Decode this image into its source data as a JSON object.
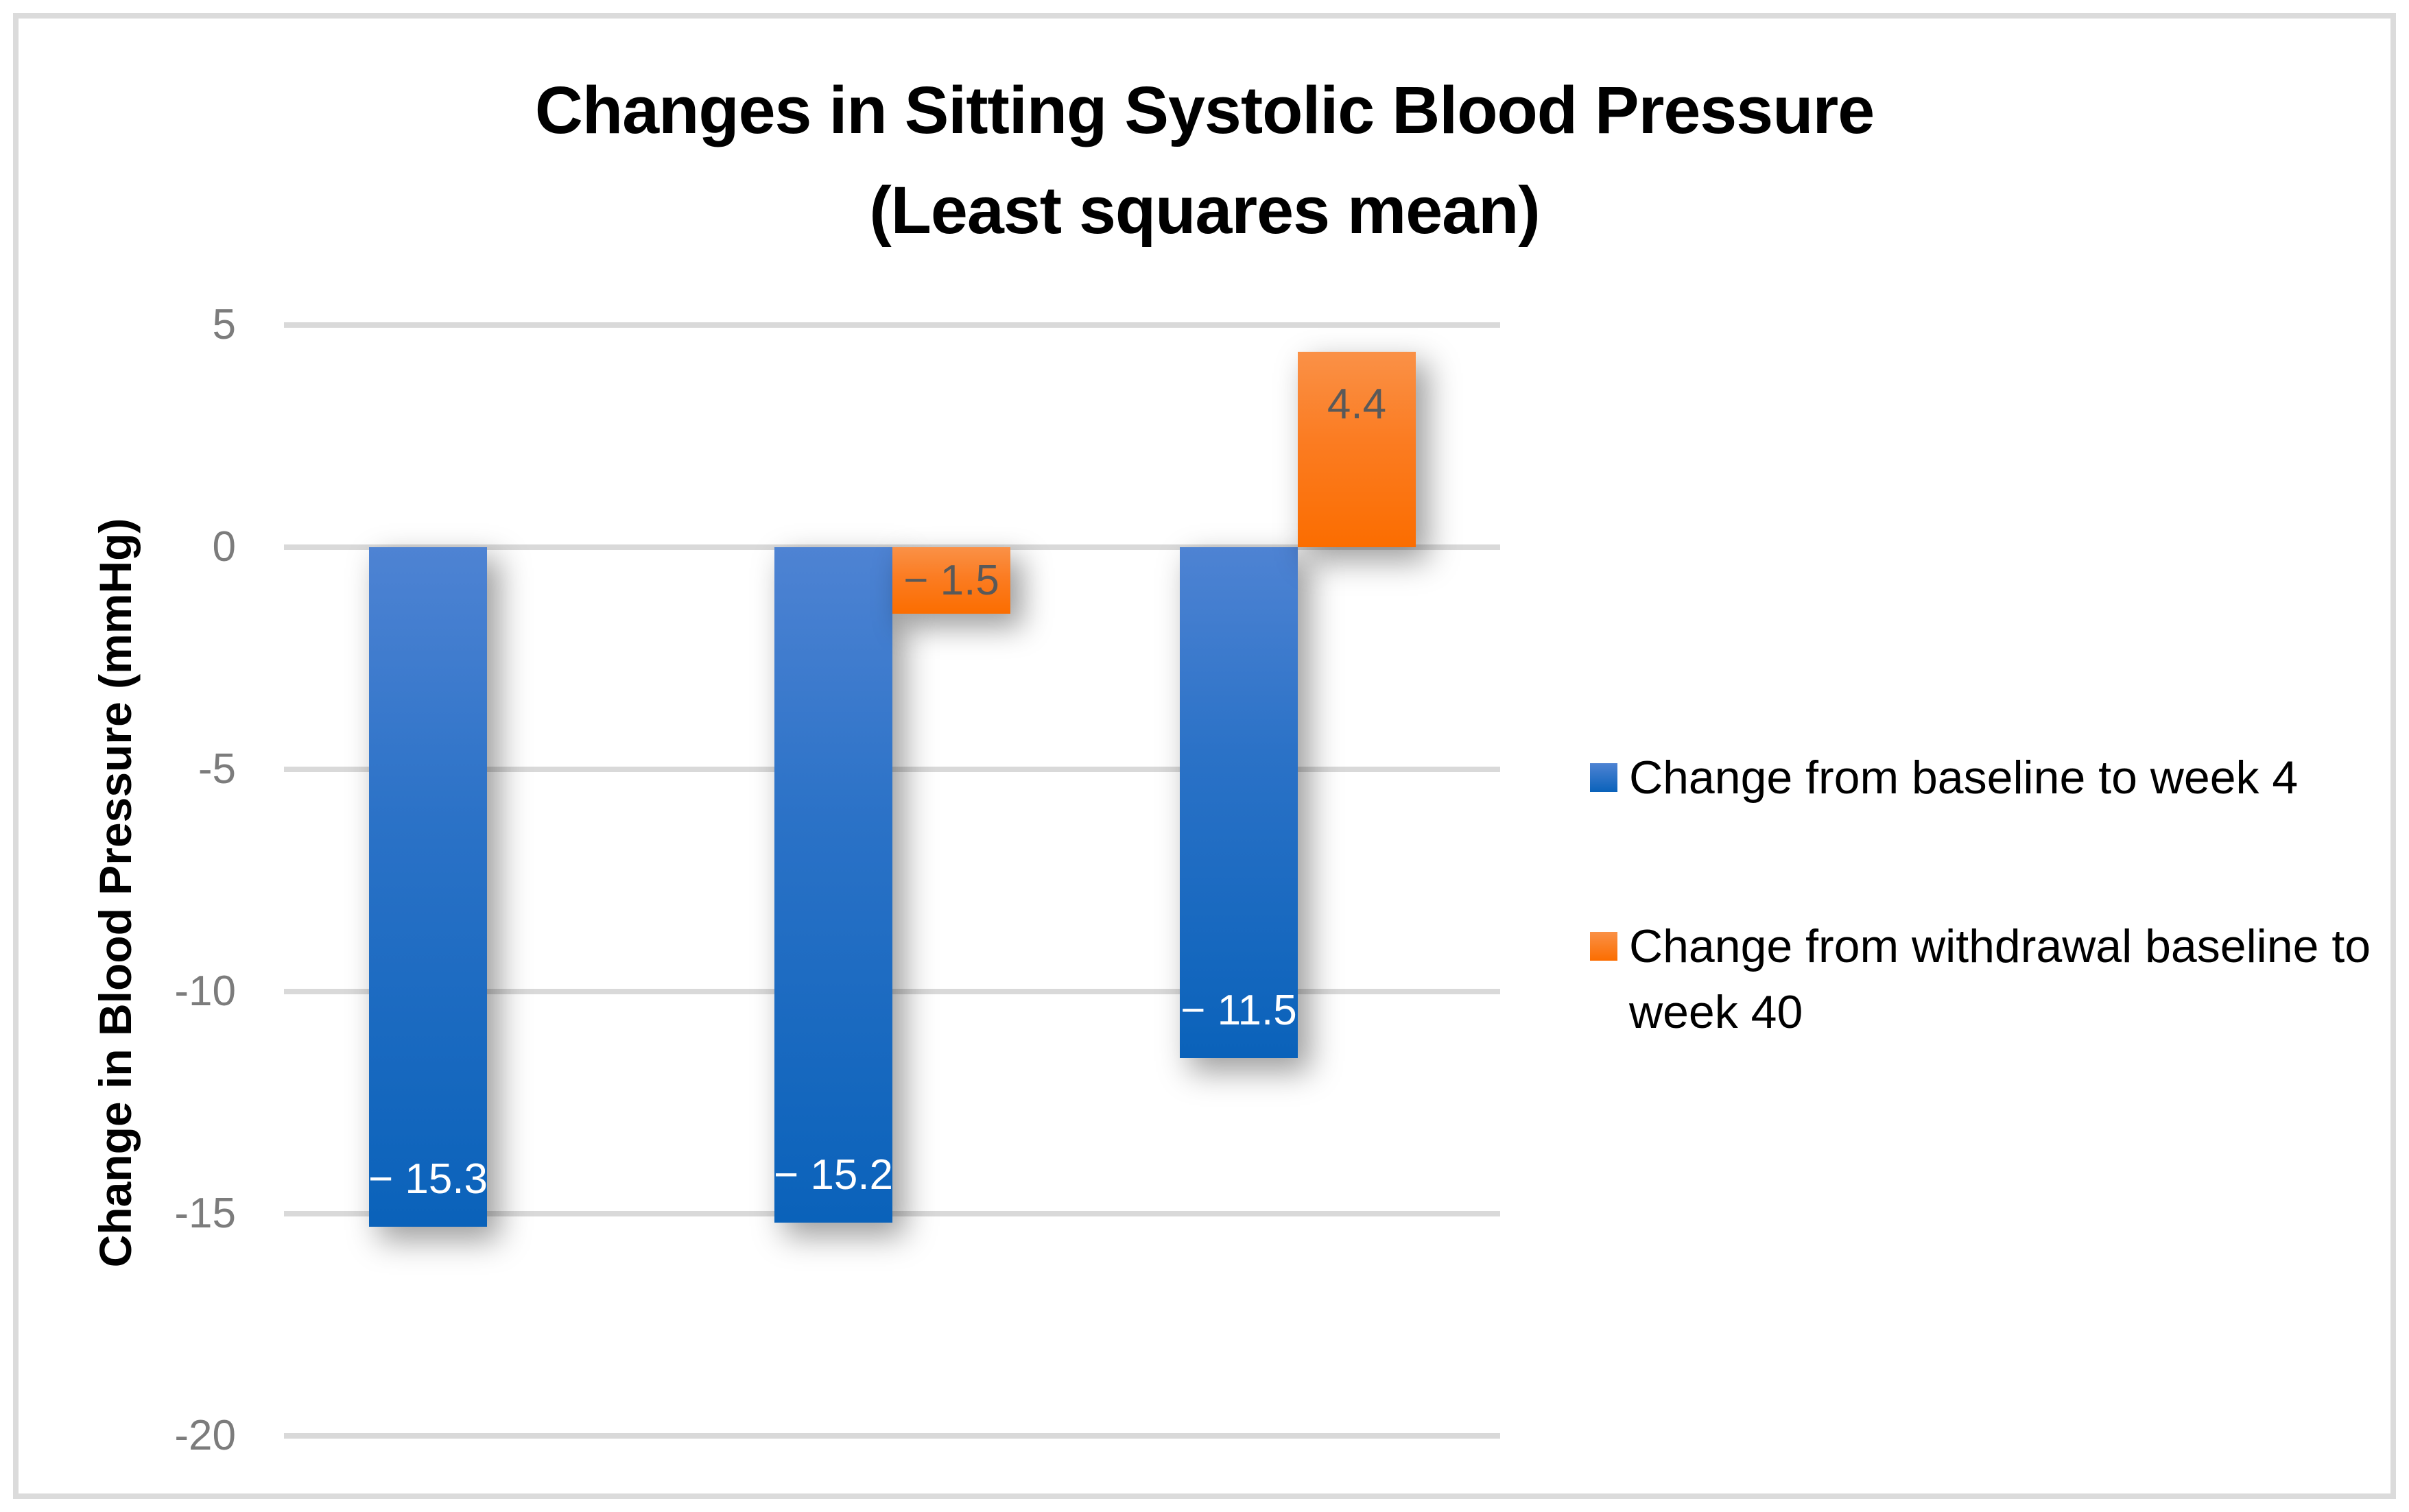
{
  "title": {
    "line1": "Changes in Sitting Systolic Blood Pressure",
    "line2": "(Least squares mean)"
  },
  "y_axis_title": "Change in Blood Pressure (mmHg)",
  "legend": {
    "items": [
      {
        "label": "Change from baseline to week 4",
        "swatch": "blue"
      },
      {
        "label": "Change from withdrawal baseline to week 40",
        "swatch": "orange"
      }
    ]
  },
  "colors": {
    "blue_bar_top": "#4E83D3",
    "blue_bar_bottom": "#0A62BA",
    "orange_bar_top": "#FA9147",
    "orange_bar_bottom": "#FB6D00",
    "gridline": "#D9D9D9",
    "tick_text": "#7C7C7C",
    "bar_label_on_blue": "#FFFFFF",
    "bar_label_on_orange": "#595959",
    "frame_border": "#DBDBDB",
    "title_text": "#000000"
  },
  "chart_data": {
    "type": "bar",
    "title": "Changes in Sitting Systolic Blood Pressure (Least squares mean)",
    "categories": [
      "",
      "",
      ""
    ],
    "series": [
      {
        "name": "Change from baseline to week 4",
        "color": "#1B67C0",
        "values": [
          -15.3,
          -15.2,
          -11.5
        ],
        "data_labels": [
          "− 15.3",
          "− 15.2",
          "− 11.5"
        ]
      },
      {
        "name": "Change from withdrawal baseline to week 40",
        "color": "#FB7A1E",
        "values": [
          null,
          -1.5,
          4.4
        ],
        "data_labels": [
          null,
          "− 1.5",
          "4.4"
        ]
      }
    ],
    "xlabel": "",
    "ylabel": "Change in Blood Pressure (mmHg)",
    "ylim": [
      -20,
      5
    ],
    "yticks": [
      5,
      0,
      -5,
      -10,
      -15,
      -20
    ],
    "grid": true,
    "legend_position": "right"
  }
}
